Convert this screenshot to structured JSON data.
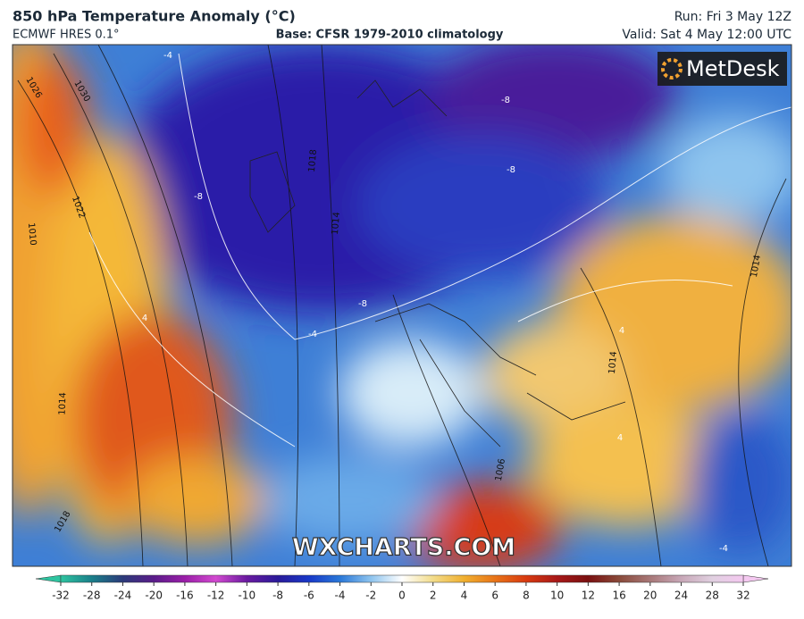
{
  "header": {
    "title": "850 hPa Temperature Anomaly (°C)",
    "model": "ECMWF HRES 0.1°",
    "base": "Base: CFSR 1979-2010 climatology",
    "run": "Run: Fri 3 May 12Z",
    "valid": "Valid: Sat 4 May 12:00 UTC"
  },
  "map": {
    "brand": "MetDesk",
    "watermark": "WXCHARTS.COM",
    "isobar_labels": [
      "1026",
      "1030",
      "1022",
      "1010",
      "1018",
      "1014",
      "1018",
      "1014",
      "1006",
      "1014",
      "1014"
    ],
    "anomaly_labels": [
      "-4",
      "-8",
      "-8",
      "-8",
      "-8",
      "4",
      "4",
      "-4",
      "4",
      "-4"
    ]
  },
  "colorbar": {
    "ticks": [
      -32,
      -28,
      -24,
      -20,
      -16,
      -12,
      -10,
      -8,
      -6,
      -4,
      -2,
      0,
      2,
      4,
      6,
      8,
      10,
      12,
      16,
      20,
      24,
      28,
      32
    ],
    "colors": [
      "#2ec4a0",
      "#1a7f8a",
      "#2b3a7a",
      "#5a1c8a",
      "#9a1ea8",
      "#d24ad0",
      "#6a1aa0",
      "#2a1a9a",
      "#1838c8",
      "#2a78d8",
      "#8ec4ee",
      "#ffffff",
      "#f2dc8a",
      "#f0b030",
      "#e87418",
      "#d83a10",
      "#a81818",
      "#7a1010",
      "#8a4a3a",
      "#a87878",
      "#c8a8b8",
      "#e0d0e0",
      "#f4c8f0"
    ]
  }
}
